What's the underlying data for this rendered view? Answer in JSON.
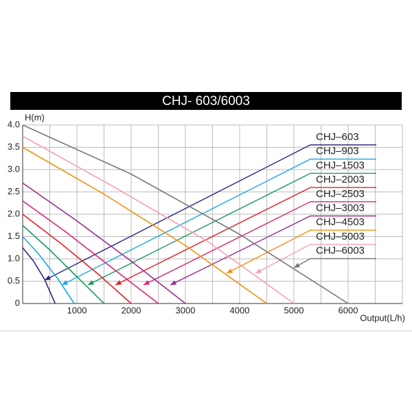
{
  "chart_data": {
    "type": "line",
    "title": "CHJ- 603/6003",
    "y_label": "H(m)",
    "x_label": "Output(L/h)",
    "xlim": [
      0,
      7000
    ],
    "xticks": [
      0,
      1000,
      2000,
      3000,
      4000,
      5000,
      6000
    ],
    "ylim": [
      0,
      4
    ],
    "yticks": [
      0,
      0.5,
      {
        "value": 1,
        "label": "1.0"
      },
      1.5,
      {
        "value": 2,
        "label": "2.0"
      },
      2.5,
      {
        "value": 3,
        "label": "3.0"
      },
      3.5,
      {
        "value": 4,
        "label": "4.0"
      }
    ],
    "grid": true,
    "series": [
      {
        "name": "CHJ–603",
        "color": "#2a2a7a",
        "x": [
          0,
          200,
          400,
          600
        ],
        "values": [
          1.25,
          0.95,
          0.55,
          0
        ]
      },
      {
        "name": "CHJ–903",
        "color": "#1aa8e0",
        "x": [
          0,
          300,
          650,
          950
        ],
        "values": [
          1.5,
          1.1,
          0.55,
          0
        ]
      },
      {
        "name": "CHJ–1503",
        "color": "#1a9a5a",
        "x": [
          0,
          500,
          1000,
          1500
        ],
        "values": [
          1.75,
          1.2,
          0.6,
          0
        ]
      },
      {
        "name": "CHJ–2003",
        "color": "#e0202a",
        "x": [
          0,
          700,
          1400,
          2000
        ],
        "values": [
          2.0,
          1.35,
          0.65,
          0
        ]
      },
      {
        "name": "CHJ–2503",
        "color": "#e0207a",
        "x": [
          0,
          800,
          1700,
          2500
        ],
        "values": [
          2.3,
          1.6,
          0.75,
          0
        ]
      },
      {
        "name": "CHJ–3003",
        "color": "#9a2a8a",
        "x": [
          0,
          1000,
          2000,
          3000
        ],
        "values": [
          2.7,
          1.85,
          0.95,
          0
        ]
      },
      {
        "name": "CHJ–4503",
        "color": "#f0900a",
        "x": [
          0,
          1500,
          3000,
          4500
        ],
        "values": [
          3.5,
          2.45,
          1.3,
          0
        ]
      },
      {
        "name": "CHJ–5003",
        "color": "#f4a0b4",
        "x": [
          0,
          1700,
          3400,
          5000
        ],
        "values": [
          3.75,
          2.6,
          1.4,
          0
        ]
      },
      {
        "name": "CHJ–6003",
        "color": "#777777",
        "x": [
          0,
          2000,
          4000,
          6000
        ],
        "values": [
          4.0,
          2.9,
          1.55,
          0
        ]
      }
    ]
  }
}
